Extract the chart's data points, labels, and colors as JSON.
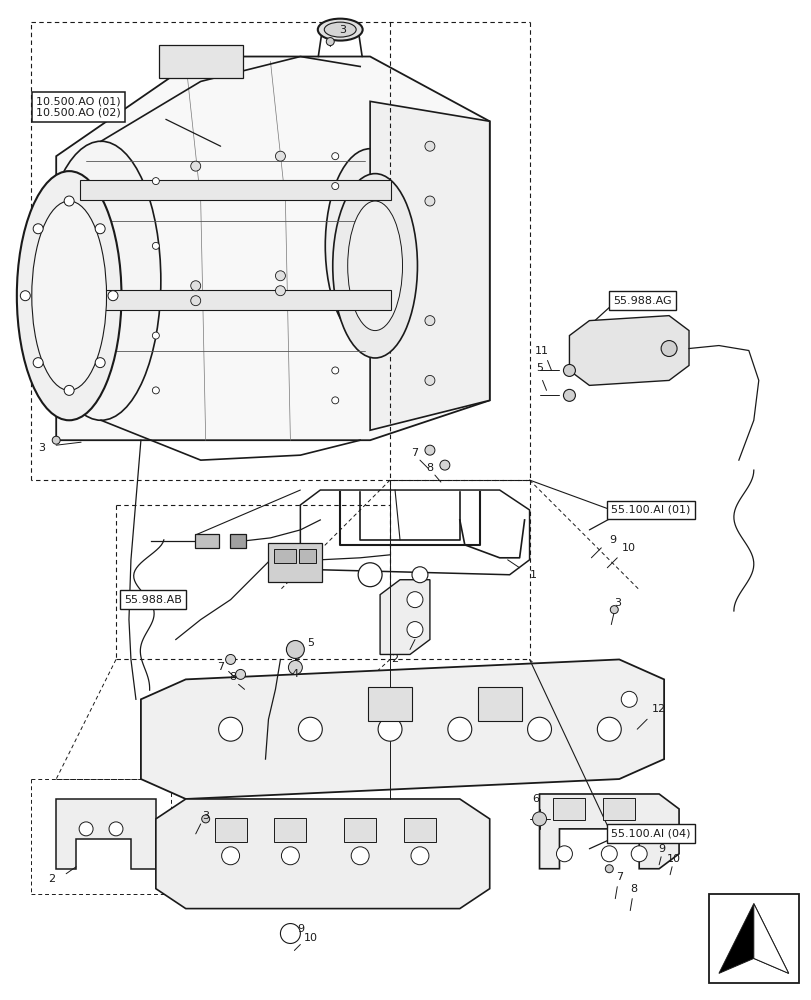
{
  "bg_color": "#ffffff",
  "lc": "#1a1a1a",
  "labels": {
    "box1": "10.500.AO (01)\n10.500.AO (02)",
    "box2": "55.988.AB",
    "box3": "55.988.AG",
    "box4": "55.100.AI (01)",
    "box5": "55.100.AI (04)"
  },
  "figsize": [
    8.12,
    10.0
  ],
  "dpi": 100
}
